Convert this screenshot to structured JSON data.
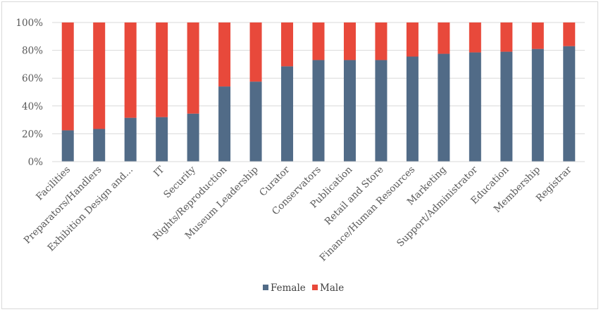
{
  "chart_data": {
    "type": "bar",
    "stacked": true,
    "percent": true,
    "categories": [
      "Facilities",
      "Preparators/Handlers",
      "Exhibition Design and...",
      "IT",
      "Security",
      "Rights/Reproduction",
      "Museum Leadership",
      "Curator",
      "Conservators",
      "Publication",
      "Retail and Store",
      "Finance/Human Resources",
      "Marketing",
      "Support/Administrator",
      "Education",
      "Membership",
      "Registrar"
    ],
    "series": [
      {
        "name": "Female",
        "color": "#516b87",
        "values": [
          22.5,
          23.5,
          31.5,
          32,
          34.5,
          54,
          57.5,
          68.5,
          73,
          73,
          73,
          75.5,
          77.5,
          78.5,
          79,
          81,
          83
        ]
      },
      {
        "name": "Male",
        "color": "#e8493b",
        "values": [
          77.5,
          76.5,
          68.5,
          68,
          65.5,
          46,
          42.5,
          31.5,
          27,
          27,
          27,
          24.5,
          22.5,
          21.5,
          21,
          19,
          17
        ]
      }
    ],
    "ylim": [
      0,
      100
    ],
    "yticks": [
      "0%",
      "20%",
      "40%",
      "60%",
      "80%",
      "100%"
    ],
    "grid": true,
    "legend": "bottom"
  }
}
